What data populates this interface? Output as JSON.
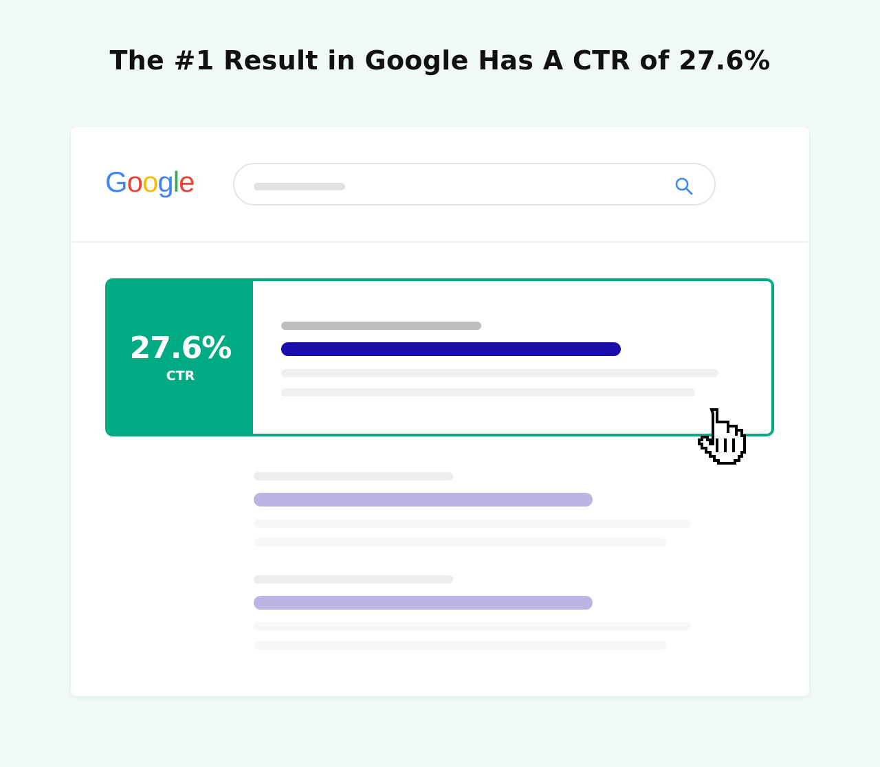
{
  "title": "The #1 Result in Google Has A CTR of 27.6%",
  "logo": {
    "letters": [
      "G",
      "o",
      "o",
      "g",
      "l",
      "e"
    ],
    "colors": [
      "#4285f4",
      "#ea4335",
      "#fbbc05",
      "#4285f4",
      "#34a853",
      "#ea4335"
    ]
  },
  "search": {
    "icon": "search-icon",
    "icon_color": "#4285f4"
  },
  "top_result": {
    "ctr_value": "27.6%",
    "ctr_label": "CTR",
    "accent": "#00ab84",
    "title_color": "#1a0dab"
  },
  "other_results_title_color": "#bbb5e4",
  "cursor": {
    "icon": "hand-pointer-icon"
  }
}
